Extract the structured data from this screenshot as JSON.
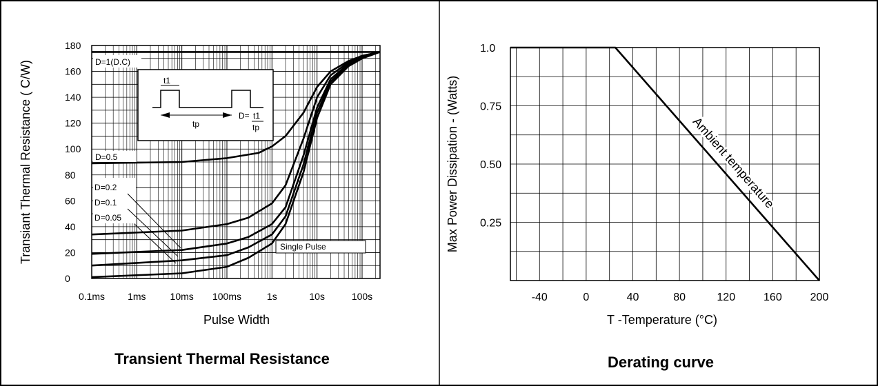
{
  "chart_data": [
    {
      "type": "line",
      "title": "Transient Thermal Resistance",
      "xlabel": "Pulse Width",
      "ylabel": "Transiant Thermal Resistance ( C/W)",
      "x_scale": "log",
      "xlim_seconds": [
        0.0001,
        250
      ],
      "ylim": [
        0,
        180
      ],
      "x_tick_values": [
        0.0001,
        0.001,
        0.01,
        0.1,
        1,
        10,
        100
      ],
      "x_tick_labels": [
        "0.1ms",
        "1ms",
        "10ms",
        "100ms",
        "1s",
        "10s",
        "100s"
      ],
      "y_ticks": [
        0,
        20,
        40,
        60,
        80,
        100,
        120,
        140,
        160,
        180
      ],
      "grid": true,
      "series": [
        {
          "name": "D=1(D.C)",
          "x": [
            0.0001,
            250
          ],
          "y": [
            175,
            175
          ]
        },
        {
          "name": "D=0.5",
          "x": [
            0.0001,
            0.01,
            0.1,
            0.5,
            1,
            2,
            5,
            10,
            20,
            50,
            100,
            250
          ],
          "y": [
            89,
            90,
            93,
            97,
            102,
            110,
            128,
            148,
            160,
            168,
            172,
            175
          ]
        },
        {
          "name": "D=0.2",
          "x": [
            0.0001,
            0.01,
            0.1,
            0.3,
            1,
            2,
            5,
            10,
            20,
            50,
            100,
            250
          ],
          "y": [
            34,
            37,
            42,
            47,
            58,
            72,
            108,
            140,
            157,
            167,
            172,
            175
          ]
        },
        {
          "name": "D=0.1",
          "x": [
            0.0001,
            0.01,
            0.1,
            0.3,
            1,
            2,
            5,
            10,
            20,
            50,
            100,
            250
          ],
          "y": [
            19,
            22,
            27,
            32,
            42,
            55,
            95,
            132,
            154,
            166,
            171,
            175
          ]
        },
        {
          "name": "D=0.05",
          "x": [
            0.0001,
            0.01,
            0.1,
            0.3,
            1,
            2,
            5,
            10,
            20,
            50,
            100,
            250
          ],
          "y": [
            10,
            14,
            18,
            24,
            34,
            48,
            88,
            128,
            152,
            165,
            171,
            175
          ]
        },
        {
          "name": "Single Pulse",
          "x": [
            0.0001,
            0.01,
            0.1,
            0.3,
            1,
            2,
            5,
            10,
            20,
            50,
            100,
            250
          ],
          "y": [
            1,
            4,
            9,
            16,
            27,
            42,
            82,
            124,
            150,
            164,
            170,
            175
          ]
        }
      ],
      "inset": {
        "t1": "t1",
        "tp": "tp",
        "duty": "D=",
        "num": "t1",
        "den": "tp"
      }
    },
    {
      "type": "line",
      "title": "Derating curve",
      "xlabel": "T -Temperature (°C)",
      "ylabel": "Max Power Dissipation - (Watts)",
      "xlim": [
        -65,
        200
      ],
      "ylim": [
        0,
        1.0
      ],
      "x_ticks": [
        -40,
        0,
        40,
        80,
        120,
        160,
        200
      ],
      "y_ticks": [
        0.25,
        0.5,
        0.75,
        1.0
      ],
      "y_tick_labels": [
        "0.25",
        "0.50",
        "0.75",
        "1.0"
      ],
      "grid": true,
      "series": [
        {
          "name": "Ambient temperature",
          "x": [
            -65,
            25,
            200
          ],
          "y": [
            1.0,
            1.0,
            0
          ]
        }
      ]
    }
  ]
}
